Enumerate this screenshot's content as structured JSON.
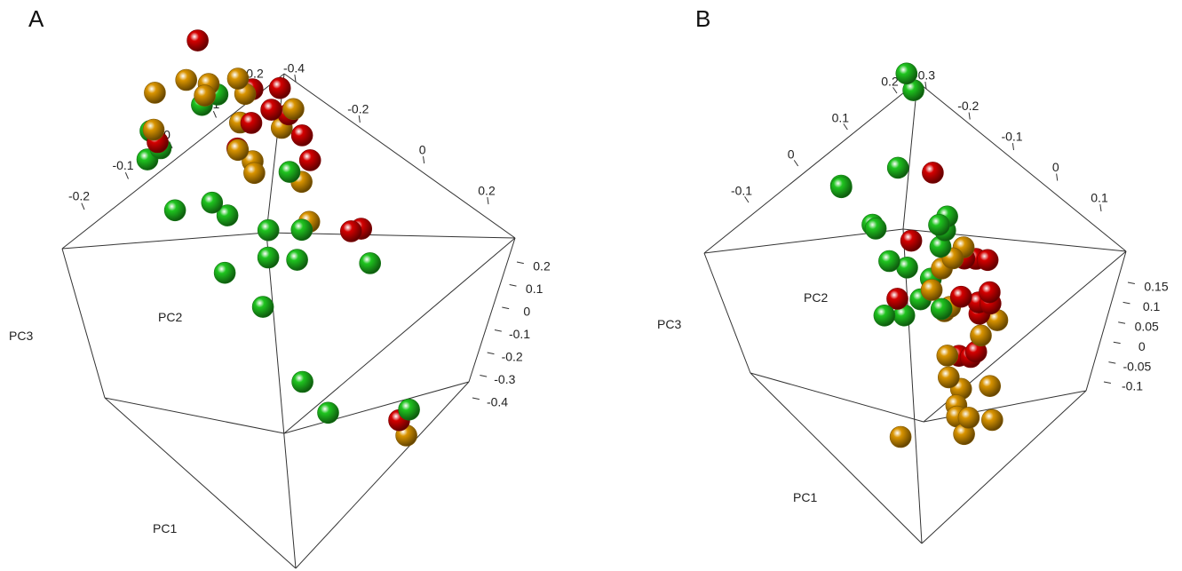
{
  "colors": {
    "red": "#d40000",
    "orange": "#d99400",
    "green": "#1fc41f"
  },
  "chart_data": [
    {
      "type": "scatter",
      "variant": "3d-pca",
      "panel": "A",
      "axes": {
        "x": "PC1",
        "y": "PC2",
        "z": "PC3"
      },
      "pc1_ticks": [
        "-0.2",
        "-0.1",
        "0",
        "0.1",
        "0.2"
      ],
      "pc2_ticks": [
        "-0.4",
        "-0.2",
        "0",
        "0.2"
      ],
      "pc3_ticks": [
        "0.2",
        "0.1",
        "0",
        "-0.1",
        "-0.2",
        "-0.3",
        "-0.4"
      ],
      "points": [
        {
          "c": "green",
          "p": [
            0.12,
            -0.39,
            0.18
          ]
        },
        {
          "c": "orange",
          "p": [
            0.14,
            -0.34,
            0.22
          ]
        },
        {
          "c": "orange",
          "p": [
            0.1,
            -0.4,
            0.2
          ]
        },
        {
          "c": "red",
          "p": [
            0.09,
            -0.4,
            0.18
          ]
        },
        {
          "c": "green",
          "p": [
            0.1,
            -0.38,
            0.15
          ]
        },
        {
          "c": "green",
          "p": [
            0.13,
            -0.4,
            0.12
          ]
        },
        {
          "c": "green",
          "p": [
            0.06,
            -0.39,
            0.05
          ]
        },
        {
          "c": "green",
          "p": [
            -0.05,
            -0.37,
            0.12
          ]
        },
        {
          "c": "green",
          "p": [
            -0.08,
            -0.35,
            0.1
          ]
        },
        {
          "c": "green",
          "p": [
            -0.1,
            -0.4,
            0.02
          ]
        },
        {
          "c": "green",
          "p": [
            -0.22,
            -0.4,
            0.02
          ]
        },
        {
          "c": "green",
          "p": [
            -0.04,
            -0.16,
            -0.06
          ]
        },
        {
          "c": "green",
          "p": [
            -0.05,
            -0.18,
            -0.1
          ]
        },
        {
          "c": "green",
          "p": [
            -0.12,
            -0.15,
            -0.08
          ]
        },
        {
          "c": "green",
          "p": [
            -0.3,
            -0.28,
            -0.22
          ]
        },
        {
          "c": "green",
          "p": [
            -0.24,
            -0.3,
            -0.18
          ]
        },
        {
          "c": "green",
          "p": [
            0.14,
            -0.17,
            0.1
          ]
        },
        {
          "c": "green",
          "p": [
            0.13,
            -0.12,
            0.1
          ]
        },
        {
          "c": "orange",
          "p": [
            0.14,
            -0.22,
            0.18
          ]
        },
        {
          "c": "orange",
          "p": [
            0.1,
            -0.2,
            0.16
          ]
        },
        {
          "c": "orange",
          "p": [
            0.12,
            -0.16,
            0.15
          ]
        },
        {
          "c": "red",
          "p": [
            0.2,
            -0.1,
            0.16
          ]
        },
        {
          "c": "orange",
          "p": [
            0.12,
            -0.05,
            0.1
          ]
        },
        {
          "c": "orange",
          "p": [
            0.1,
            -0.05,
            0.08
          ]
        },
        {
          "c": "orange",
          "p": [
            0.08,
            -0.1,
            0.06
          ]
        },
        {
          "c": "orange",
          "p": [
            0.04,
            -0.16,
            0.06
          ]
        },
        {
          "c": "orange",
          "p": [
            0.0,
            -0.15,
            0.03
          ]
        },
        {
          "c": "red",
          "p": [
            0.06,
            -0.08,
            0.06
          ]
        },
        {
          "c": "red",
          "p": [
            0.06,
            -0.14,
            0.04
          ]
        },
        {
          "c": "orange",
          "p": [
            0.03,
            -0.12,
            0.02
          ]
        },
        {
          "c": "red",
          "p": [
            0.12,
            0.0,
            0.05
          ]
        },
        {
          "c": "red",
          "p": [
            0.08,
            0.02,
            0.02
          ]
        },
        {
          "c": "orange",
          "p": [
            0.05,
            0.02,
            0.0
          ]
        },
        {
          "c": "red",
          "p": [
            0.06,
            0.06,
            0.0
          ]
        },
        {
          "c": "orange",
          "p": [
            0.06,
            0.08,
            0.0
          ]
        },
        {
          "c": "red",
          "p": [
            0.02,
            0.06,
            -0.02
          ]
        },
        {
          "c": "red",
          "p": [
            0.1,
            0.08,
            0.02
          ]
        },
        {
          "c": "green",
          "p": [
            0.0,
            -0.02,
            -0.04
          ]
        },
        {
          "c": "orange",
          "p": [
            -0.02,
            0.0,
            -0.06
          ]
        },
        {
          "c": "red",
          "p": [
            0.0,
            0.06,
            -0.06
          ]
        },
        {
          "c": "orange",
          "p": [
            -0.08,
            -0.05,
            -0.08
          ]
        },
        {
          "c": "green",
          "p": [
            -0.08,
            -0.08,
            -0.08
          ]
        },
        {
          "c": "red",
          "p": [
            -0.1,
            0.08,
            -0.16
          ]
        },
        {
          "c": "red",
          "p": [
            -0.08,
            0.14,
            -0.2
          ]
        },
        {
          "c": "green",
          "p": [
            -0.1,
            0.14,
            -0.26
          ]
        },
        {
          "c": "red",
          "p": [
            -0.3,
            -0.02,
            -0.38
          ]
        },
        {
          "c": "orange",
          "p": [
            -0.32,
            -0.02,
            -0.4
          ]
        },
        {
          "c": "green",
          "p": [
            -0.3,
            0.02,
            -0.38
          ]
        }
      ]
    },
    {
      "type": "scatter",
      "variant": "3d-pca",
      "panel": "B",
      "axes": {
        "x": "PC1",
        "y": "PC2",
        "z": "PC3"
      },
      "pc1_ticks": [
        "-0.1",
        "0",
        "0.1",
        "0.2"
      ],
      "pc2_ticks": [
        "-0.3",
        "-0.2",
        "-0.1",
        "0",
        "0.1"
      ],
      "pc3_ticks": [
        "0.15",
        "0.1",
        "0.05",
        "0",
        "-0.05",
        "-0.1"
      ],
      "points": [
        {
          "c": "green",
          "p": [
            0.05,
            -0.3,
            0.08
          ]
        },
        {
          "c": "green",
          "p": [
            0.09,
            -0.26,
            0.06
          ]
        },
        {
          "c": "green",
          "p": [
            0.02,
            -0.22,
            0.03
          ]
        },
        {
          "c": "green",
          "p": [
            0.05,
            -0.2,
            0.02
          ]
        },
        {
          "c": "green",
          "p": [
            0.05,
            -0.1,
            0.05
          ]
        },
        {
          "c": "green",
          "p": [
            0.12,
            0.02,
            0.09
          ]
        },
        {
          "c": "green",
          "p": [
            0.1,
            0.02,
            0.08
          ]
        },
        {
          "c": "green",
          "p": [
            -0.12,
            -0.35,
            0.02
          ]
        },
        {
          "c": "green",
          "p": [
            0.0,
            -0.2,
            0.0
          ]
        },
        {
          "c": "green",
          "p": [
            -0.02,
            -0.16,
            -0.01
          ]
        },
        {
          "c": "red",
          "p": [
            0.0,
            -0.12,
            0.0
          ]
        },
        {
          "c": "green",
          "p": [
            -0.04,
            -0.2,
            -0.04
          ]
        },
        {
          "c": "red",
          "p": [
            -0.02,
            -0.2,
            -0.03
          ]
        },
        {
          "c": "red",
          "p": [
            0.08,
            0.05,
            0.0
          ]
        },
        {
          "c": "green",
          "p": [
            0.02,
            0.0,
            -0.02
          ]
        },
        {
          "c": "green",
          "p": [
            -0.02,
            -0.08,
            -0.04
          ]
        },
        {
          "c": "green",
          "p": [
            -0.02,
            -0.12,
            -0.05
          ]
        },
        {
          "c": "orange",
          "p": [
            -0.04,
            -0.1,
            -0.04
          ]
        },
        {
          "c": "orange",
          "p": [
            -0.02,
            -0.04,
            -0.04
          ]
        },
        {
          "c": "green",
          "p": [
            0.0,
            -0.02,
            -0.03
          ]
        },
        {
          "c": "orange",
          "p": [
            -0.02,
            0.0,
            -0.04
          ]
        },
        {
          "c": "green",
          "p": [
            0.02,
            0.02,
            -0.03
          ]
        },
        {
          "c": "orange",
          "p": [
            -0.06,
            -0.06,
            -0.06
          ]
        },
        {
          "c": "red",
          "p": [
            -0.06,
            -0.02,
            -0.06
          ]
        },
        {
          "c": "orange",
          "p": [
            -0.04,
            -0.06,
            -0.07
          ]
        },
        {
          "c": "green",
          "p": [
            -0.05,
            -0.08,
            -0.06
          ]
        },
        {
          "c": "red",
          "p": [
            -0.02,
            0.04,
            -0.05
          ]
        },
        {
          "c": "green",
          "p": [
            0.04,
            0.05,
            -0.03
          ]
        },
        {
          "c": "red",
          "p": [
            -0.02,
            0.08,
            -0.06
          ]
        },
        {
          "c": "orange",
          "p": [
            0.0,
            0.06,
            -0.05
          ]
        },
        {
          "c": "red",
          "p": [
            -0.1,
            -0.08,
            -0.09
          ]
        },
        {
          "c": "orange",
          "p": [
            -0.1,
            -0.12,
            -0.08
          ]
        },
        {
          "c": "orange",
          "p": [
            -0.12,
            -0.14,
            -0.09
          ]
        },
        {
          "c": "red",
          "p": [
            -0.12,
            -0.06,
            -0.09
          ]
        },
        {
          "c": "orange",
          "p": [
            -0.14,
            -0.12,
            -0.1
          ]
        },
        {
          "c": "orange",
          "p": [
            -0.16,
            -0.16,
            -0.1
          ]
        },
        {
          "c": "red",
          "p": [
            -0.12,
            -0.04,
            -0.09
          ]
        },
        {
          "c": "orange",
          "p": [
            -0.18,
            -0.18,
            -0.1
          ]
        },
        {
          "c": "red",
          "p": [
            -0.08,
            0.02,
            -0.08
          ]
        },
        {
          "c": "red",
          "p": [
            -0.06,
            0.04,
            -0.08
          ]
        },
        {
          "c": "orange",
          "p": [
            -0.1,
            0.0,
            -0.09
          ]
        },
        {
          "c": "red",
          "p": [
            -0.08,
            0.06,
            -0.08
          ]
        },
        {
          "c": "orange",
          "p": [
            -0.1,
            0.06,
            -0.09
          ]
        },
        {
          "c": "red",
          "p": [
            -0.06,
            0.08,
            -0.08
          ]
        },
        {
          "c": "red",
          "p": [
            -0.04,
            0.1,
            -0.06
          ]
        },
        {
          "c": "orange",
          "p": [
            -0.22,
            -0.2,
            -0.1
          ]
        },
        {
          "c": "orange",
          "p": [
            -0.2,
            -0.16,
            -0.1
          ]
        },
        {
          "c": "orange",
          "p": [
            -0.24,
            -0.12,
            -0.1
          ]
        },
        {
          "c": "orange",
          "p": [
            -0.2,
            -0.4,
            -0.06
          ]
        },
        {
          "c": "orange",
          "p": [
            -0.18,
            -0.06,
            -0.1
          ]
        }
      ]
    }
  ],
  "panels": [
    {
      "letter": "A"
    },
    {
      "letter": "B"
    }
  ]
}
